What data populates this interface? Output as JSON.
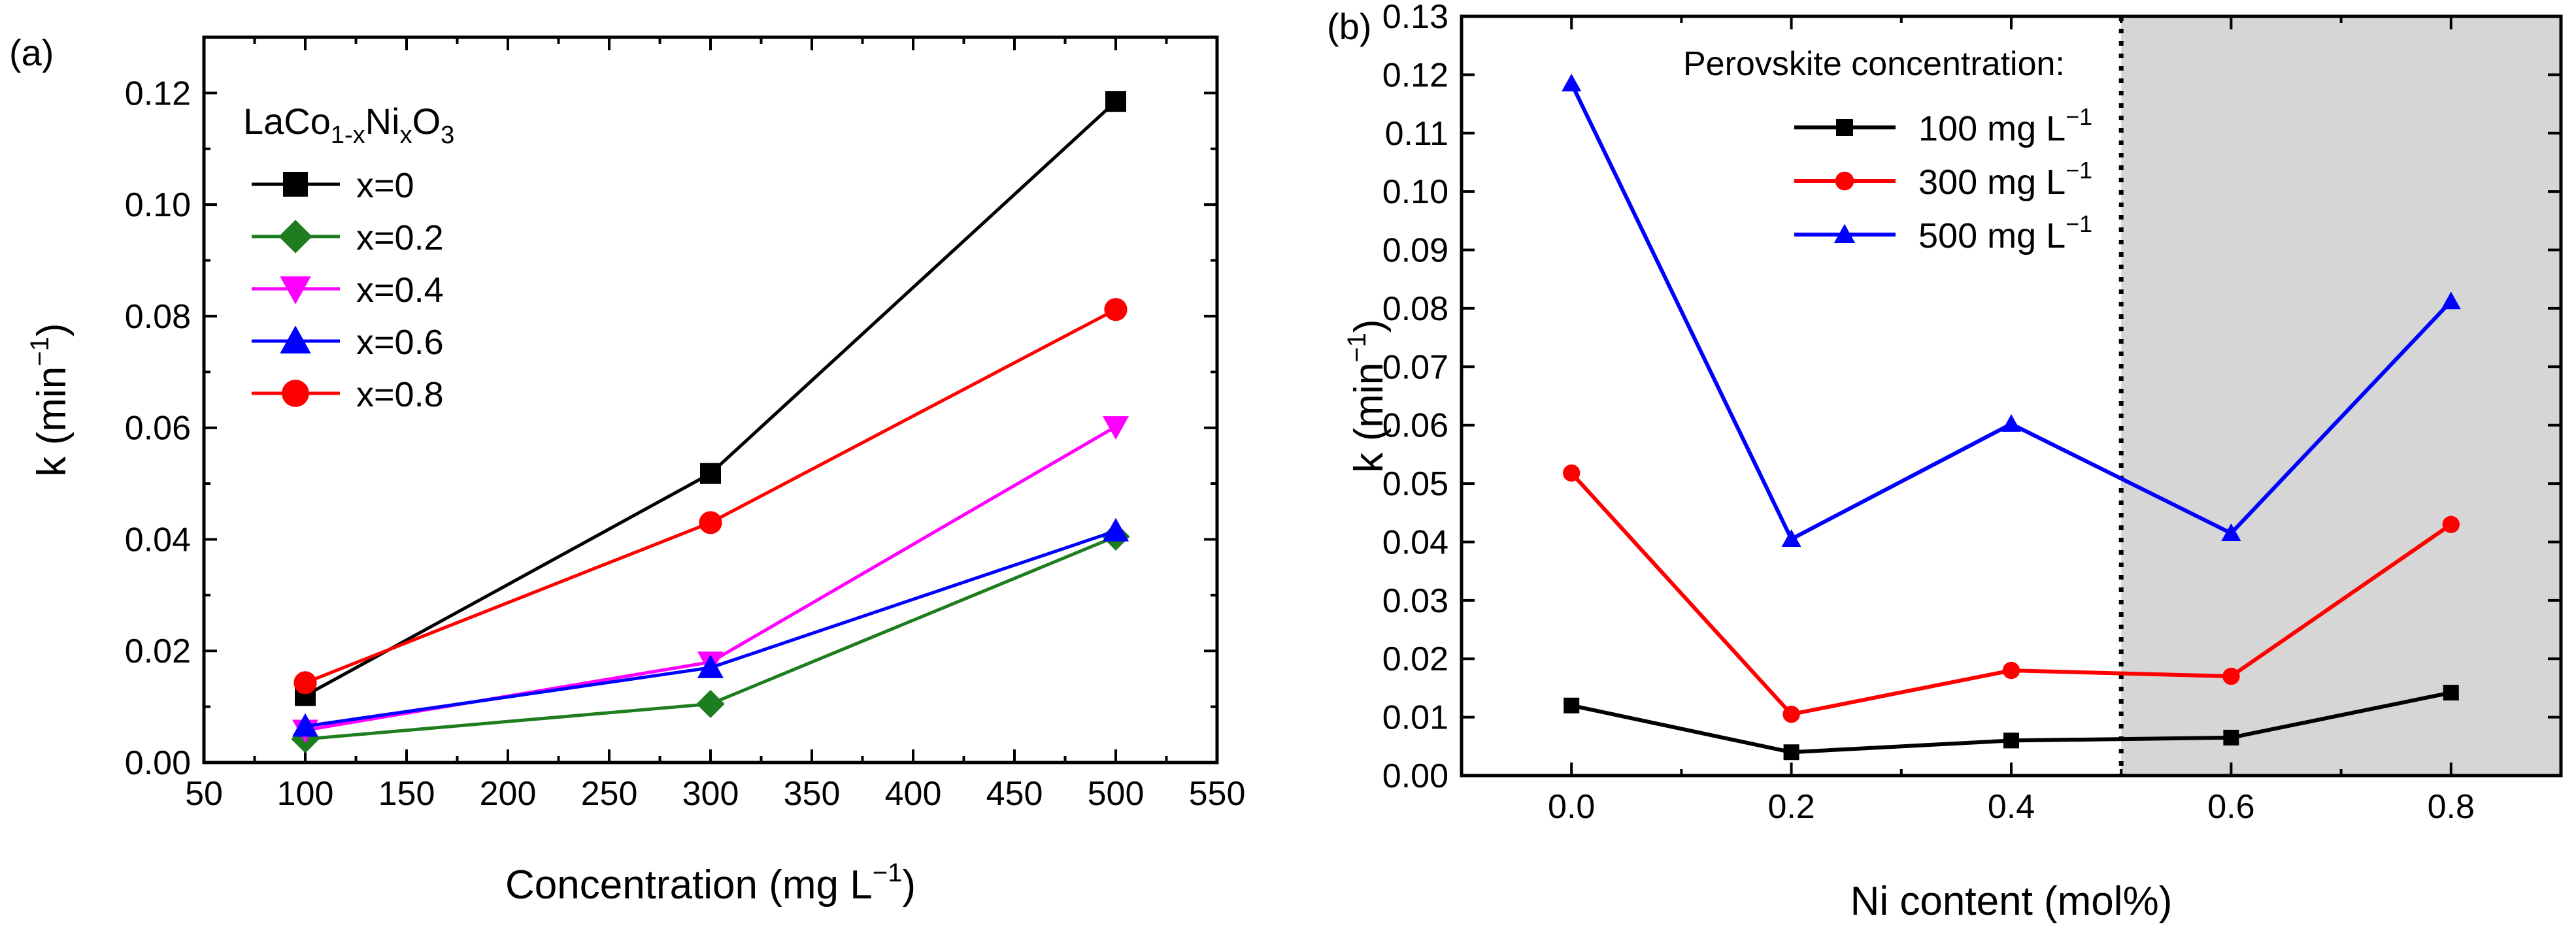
{
  "chart_data": [
    {
      "type": "line",
      "panel_label": "(a)",
      "xlabel": "Concentration (mg L",
      "xlabel_sup": "−1",
      "xlabel_tail": ")",
      "ylabel": "k (min",
      "ylabel_sup": "−1",
      "ylabel_tail": ")",
      "xlim": [
        50,
        550
      ],
      "ylim": [
        0,
        0.13
      ],
      "xticks": [
        50,
        100,
        150,
        200,
        250,
        300,
        350,
        400,
        450,
        500,
        550
      ],
      "xtick_labels": [
        "50",
        "100",
        "150",
        "200",
        "250",
        "300",
        "350",
        "400",
        "450",
        "500",
        "550"
      ],
      "yticks": [
        0,
        0.02,
        0.04,
        0.06,
        0.08,
        0.1,
        0.12
      ],
      "ytick_labels": [
        "0.00",
        "0.02",
        "0.04",
        "0.06",
        "0.08",
        "0.10",
        "0.12"
      ],
      "legend_title": {
        "base": "LaCo",
        "sub1": "1-x",
        "mid": "Ni",
        "sub2": "x",
        "end": "O",
        "sub3": "3"
      },
      "legend_position": "top-left",
      "x": [
        100,
        300,
        500
      ],
      "series": [
        {
          "name": "x=0",
          "color": "#000000",
          "marker": "square",
          "values": [
            0.012,
            0.0518,
            0.1185
          ]
        },
        {
          "name": "x=0.2",
          "color": "#1e7d1e",
          "marker": "diamond",
          "values": [
            0.0042,
            0.0105,
            0.0405
          ]
        },
        {
          "name": "x=0.4",
          "color": "#ff00ff",
          "marker": "triangle-down",
          "values": [
            0.0058,
            0.018,
            0.0602
          ]
        },
        {
          "name": "x=0.6",
          "color": "#0000ff",
          "marker": "triangle-up",
          "values": [
            0.0065,
            0.017,
            0.0415
          ]
        },
        {
          "name": "x=0.8",
          "color": "#ff0000",
          "marker": "circle",
          "values": [
            0.0143,
            0.043,
            0.0812
          ]
        }
      ]
    },
    {
      "type": "line",
      "panel_label": "(b)",
      "xlabel": "Ni content (mol%)",
      "ylabel": "k (min",
      "ylabel_sup": "−1",
      "ylabel_tail": ")",
      "xlim": [
        -0.1,
        0.9
      ],
      "ylim": [
        0,
        0.13
      ],
      "xticks": [
        0,
        0.2,
        0.4,
        0.6,
        0.8
      ],
      "xtick_labels": [
        "0.0",
        "0.2",
        "0.4",
        "0.6",
        "0.8"
      ],
      "yticks": [
        0,
        0.01,
        0.02,
        0.03,
        0.04,
        0.05,
        0.06,
        0.07,
        0.08,
        0.09,
        0.1,
        0.11,
        0.12,
        0.13
      ],
      "ytick_labels": [
        "0.00",
        "0.01",
        "0.02",
        "0.03",
        "0.04",
        "0.05",
        "0.06",
        "0.07",
        "0.08",
        "0.09",
        "0.10",
        "0.11",
        "0.12",
        "0.13"
      ],
      "legend_title": "Perovskite concentration:",
      "legend_position": "top-right",
      "shaded_region_x": [
        0.5,
        0.9
      ],
      "dotted_line_x": 0.5,
      "x": [
        0,
        0.2,
        0.4,
        0.6,
        0.8
      ],
      "series": [
        {
          "name": "100 mg L",
          "sup": "−1",
          "color": "#000000",
          "marker": "square",
          "values": [
            0.012,
            0.004,
            0.006,
            0.0065,
            0.0142
          ]
        },
        {
          "name": "300 mg L",
          "sup": "−1",
          "color": "#ff0000",
          "marker": "circle",
          "values": [
            0.0518,
            0.0105,
            0.018,
            0.017,
            0.043
          ]
        },
        {
          "name": "500 mg L",
          "sup": "−1",
          "color": "#0000ff",
          "marker": "triangle-up",
          "values": [
            0.1185,
            0.0405,
            0.0602,
            0.0415,
            0.0812
          ]
        }
      ]
    }
  ]
}
